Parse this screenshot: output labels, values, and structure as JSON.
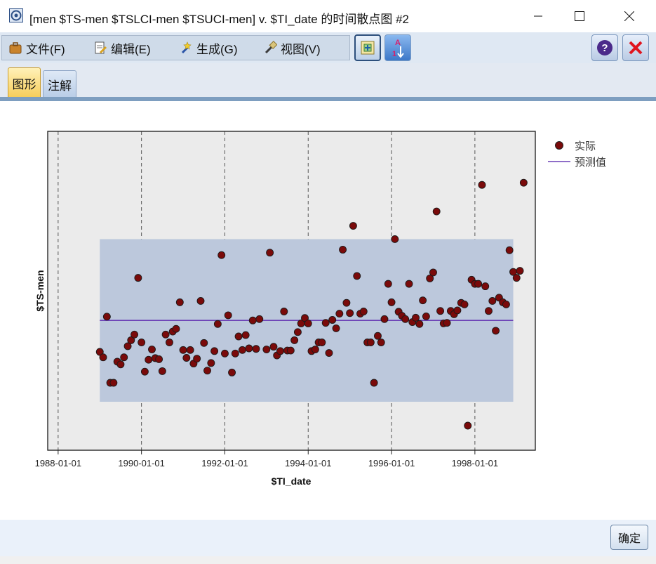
{
  "window": {
    "title": "[men $TS-men $TSLCI-men $TSUCI-men] v. $TI_date 的时间散点图 #2"
  },
  "menu": {
    "items": [
      {
        "label": "文件(F)",
        "icon": "briefcase-icon"
      },
      {
        "label": "编辑(E)",
        "icon": "edit-page-icon"
      },
      {
        "label": "生成(G)",
        "icon": "wand-icon"
      },
      {
        "label": "视图(V)",
        "icon": "brush-icon"
      }
    ]
  },
  "toolbar": {
    "buttons": [
      "add-panel-icon",
      "sort-icon"
    ],
    "help_icon": "help-icon",
    "close_icon": "close-icon"
  },
  "tabs": [
    {
      "label": "图形",
      "active": true
    },
    {
      "label": "注解",
      "active": false
    }
  ],
  "footer": {
    "ok_label": "确定"
  },
  "colors": {
    "point": "#7a0a0a",
    "band": "#bcc8dc",
    "line": "#6a3fb5",
    "plot_bg": "#ebebeb"
  },
  "chart_data": {
    "type": "scatter",
    "title": "",
    "xlabel": "$TI_date",
    "ylabel": "$TS-men",
    "x_unit": "year",
    "xlim": [
      1987.75,
      1999.45
    ],
    "ylim": [
      0,
      100
    ],
    "x_ticks": [
      {
        "year": 1988,
        "label": "1988-01-01"
      },
      {
        "year": 1990,
        "label": "1990-01-01"
      },
      {
        "year": 1992,
        "label": "1992-01-01"
      },
      {
        "year": 1994,
        "label": "1994-01-01"
      },
      {
        "year": 1996,
        "label": "1996-01-01"
      },
      {
        "year": 1998,
        "label": "1998-01-01"
      }
    ],
    "grid": "vertical-dashed",
    "legend": {
      "position": "top-right",
      "entries": [
        {
          "label": "实际",
          "kind": "point"
        },
        {
          "label": "预测值",
          "kind": "line"
        }
      ]
    },
    "forecast": {
      "x_start": 1989.0,
      "x_end": 1998.92,
      "value": 38.8,
      "lower": 8.8,
      "upper": 68.8
    },
    "actual": [
      [
        1989.0,
        27.2
      ],
      [
        1989.08,
        25.2
      ],
      [
        1989.17,
        40.2
      ],
      [
        1989.25,
        15.8
      ],
      [
        1989.33,
        15.8
      ],
      [
        1989.42,
        23.6
      ],
      [
        1989.5,
        22.6
      ],
      [
        1989.58,
        25.2
      ],
      [
        1989.67,
        29.3
      ],
      [
        1989.75,
        31.5
      ],
      [
        1989.83,
        33.6
      ],
      [
        1989.92,
        54.5
      ],
      [
        1990.0,
        30.7
      ],
      [
        1990.08,
        19.9
      ],
      [
        1990.17,
        24.3
      ],
      [
        1990.25,
        28.1
      ],
      [
        1990.33,
        24.9
      ],
      [
        1990.42,
        24.5
      ],
      [
        1990.5,
        20.1
      ],
      [
        1990.58,
        33.6
      ],
      [
        1990.67,
        30.7
      ],
      [
        1990.75,
        34.7
      ],
      [
        1990.83,
        35.7
      ],
      [
        1990.92,
        45.5
      ],
      [
        1991.0,
        27.9
      ],
      [
        1991.08,
        25.0
      ],
      [
        1991.17,
        27.9
      ],
      [
        1991.25,
        22.9
      ],
      [
        1991.33,
        24.7
      ],
      [
        1991.42,
        46.0
      ],
      [
        1991.5,
        30.5
      ],
      [
        1991.58,
        20.3
      ],
      [
        1991.67,
        23.1
      ],
      [
        1991.75,
        27.5
      ],
      [
        1991.83,
        37.5
      ],
      [
        1991.92,
        62.9
      ],
      [
        1992.0,
        26.6
      ],
      [
        1992.08,
        40.7
      ],
      [
        1992.17,
        19.6
      ],
      [
        1992.25,
        26.6
      ],
      [
        1992.33,
        32.9
      ],
      [
        1992.42,
        27.9
      ],
      [
        1992.5,
        33.4
      ],
      [
        1992.58,
        28.5
      ],
      [
        1992.67,
        38.8
      ],
      [
        1992.75,
        28.3
      ],
      [
        1992.83,
        39.3
      ],
      [
        1993.0,
        28.1
      ],
      [
        1993.08,
        63.8
      ],
      [
        1993.17,
        29.1
      ],
      [
        1993.25,
        25.9
      ],
      [
        1993.33,
        27.5
      ],
      [
        1993.42,
        42.1
      ],
      [
        1993.5,
        27.7
      ],
      [
        1993.58,
        27.7
      ],
      [
        1993.67,
        31.5
      ],
      [
        1993.75,
        34.5
      ],
      [
        1993.83,
        37.7
      ],
      [
        1993.92,
        39.7
      ],
      [
        1994.0,
        37.7
      ],
      [
        1994.08,
        27.5
      ],
      [
        1994.17,
        28.1
      ],
      [
        1994.25,
        30.7
      ],
      [
        1994.33,
        30.7
      ],
      [
        1994.42,
        37.9
      ],
      [
        1994.5,
        26.8
      ],
      [
        1994.58,
        39.0
      ],
      [
        1994.67,
        35.9
      ],
      [
        1994.75,
        41.3
      ],
      [
        1994.83,
        64.9
      ],
      [
        1994.92,
        45.3
      ],
      [
        1995.0,
        41.5
      ],
      [
        1995.08,
        73.7
      ],
      [
        1995.17,
        55.2
      ],
      [
        1995.25,
        41.3
      ],
      [
        1995.33,
        42.1
      ],
      [
        1995.42,
        30.7
      ],
      [
        1995.5,
        30.7
      ],
      [
        1995.58,
        15.8
      ],
      [
        1995.67,
        33.1
      ],
      [
        1995.75,
        30.7
      ],
      [
        1995.83,
        39.3
      ],
      [
        1995.92,
        52.3
      ],
      [
        1996.0,
        45.5
      ],
      [
        1996.08,
        68.8
      ],
      [
        1996.17,
        42.0
      ],
      [
        1996.25,
        40.5
      ],
      [
        1996.33,
        39.3
      ],
      [
        1996.42,
        52.3
      ],
      [
        1996.5,
        38.2
      ],
      [
        1996.58,
        39.8
      ],
      [
        1996.67,
        37.5
      ],
      [
        1996.75,
        46.2
      ],
      [
        1996.83,
        40.3
      ],
      [
        1996.92,
        54.3
      ],
      [
        1997.0,
        56.5
      ],
      [
        1997.08,
        79.0
      ],
      [
        1997.17,
        42.3
      ],
      [
        1997.25,
        37.7
      ],
      [
        1997.33,
        37.9
      ],
      [
        1997.42,
        42.3
      ],
      [
        1997.5,
        41.1
      ],
      [
        1997.58,
        42.5
      ],
      [
        1997.67,
        45.3
      ],
      [
        1997.75,
        44.7
      ],
      [
        1997.83,
        0.0
      ],
      [
        1997.92,
        53.8
      ],
      [
        1998.0,
        52.3
      ],
      [
        1998.08,
        52.3
      ],
      [
        1998.17,
        88.8
      ],
      [
        1998.25,
        51.4
      ],
      [
        1998.33,
        42.3
      ],
      [
        1998.42,
        46.0
      ],
      [
        1998.5,
        35.0
      ],
      [
        1998.58,
        47.2
      ],
      [
        1998.67,
        45.5
      ],
      [
        1998.75,
        44.7
      ],
      [
        1998.83,
        64.7
      ],
      [
        1998.92,
        56.7
      ],
      [
        1999.0,
        54.5
      ],
      [
        1999.08,
        57.1
      ],
      [
        1999.17,
        89.6
      ]
    ]
  }
}
